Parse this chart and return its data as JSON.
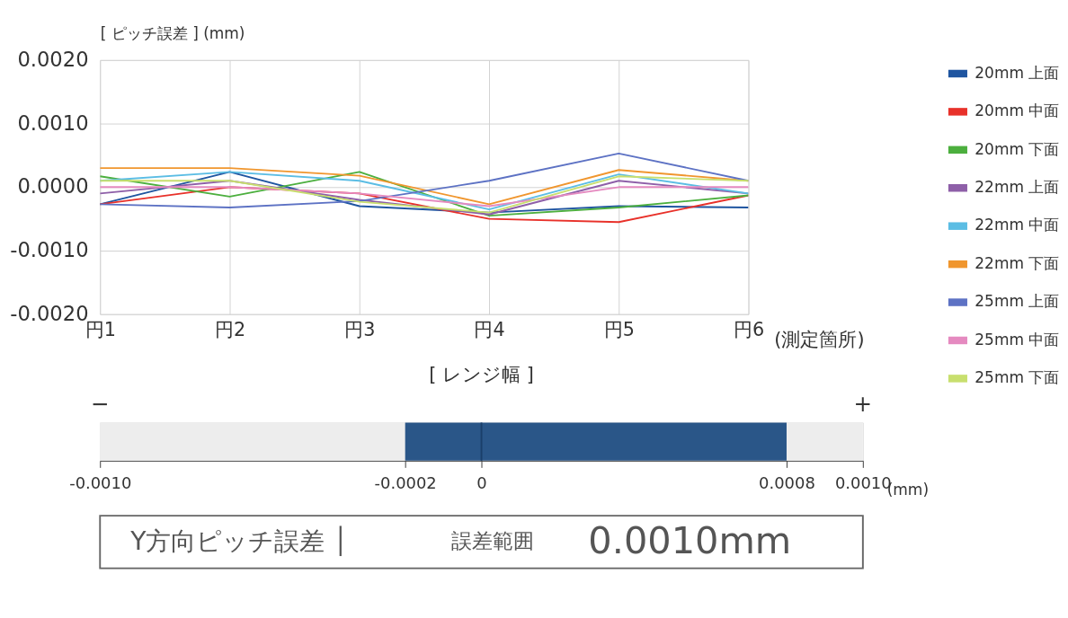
{
  "chart_data": [
    {
      "type": "line",
      "ylabel": "[ ピッチ誤差 ] (mm)",
      "xlabel": "(測定箇所)",
      "categories": [
        "円1",
        "円2",
        "円3",
        "円4",
        "円5",
        "円6"
      ],
      "series": [
        {
          "name": "20mm 上面",
          "color": "#1f55a0",
          "values": [
            -0.00027,
            0.00024,
            -0.0003,
            -0.0004,
            -0.0003,
            -0.00032
          ]
        },
        {
          "name": "20mm 中面",
          "color": "#e8312a",
          "values": [
            -0.00027,
            0.0,
            -0.0001,
            -0.0005,
            -0.00055,
            -0.00013
          ]
        },
        {
          "name": "20mm 下面",
          "color": "#4caf3e",
          "values": [
            0.00017,
            -0.00015,
            0.00024,
            -0.00045,
            -0.00032,
            -0.00013
          ]
        },
        {
          "name": "22mm 上面",
          "color": "#8e5fa8",
          "values": [
            -0.0001,
            0.0001,
            -0.0002,
            -0.00043,
            0.0001,
            -0.0001
          ]
        },
        {
          "name": "22mm 中面",
          "color": "#5bbde4",
          "values": [
            0.0001,
            0.00024,
            0.0001,
            -0.00035,
            0.0002,
            -0.0001
          ]
        },
        {
          "name": "22mm 下面",
          "color": "#f0962e",
          "values": [
            0.0003,
            0.0003,
            0.00018,
            -0.00027,
            0.00027,
            0.0001
          ]
        },
        {
          "name": "25mm 上面",
          "color": "#5d72c4",
          "values": [
            -0.00027,
            -0.00032,
            -0.00022,
            0.0001,
            0.00053,
            0.0001
          ]
        },
        {
          "name": "25mm 中面",
          "color": "#e58ac0",
          "values": [
            0.0,
            0.0,
            -0.0001,
            -0.0003,
            0.0,
            0.0
          ]
        },
        {
          "name": "25mm 下面",
          "color": "#c8df6e",
          "values": [
            0.0001,
            0.0001,
            -0.00023,
            -0.0004,
            0.00017,
            0.0001
          ]
        }
      ],
      "ylim": [
        -0.002,
        0.002
      ],
      "yticks": [
        {
          "value": -0.002,
          "label": "-0.0020"
        },
        {
          "value": -0.001,
          "label": "-0.0010"
        },
        {
          "value": 0,
          "label": "0.0000"
        },
        {
          "value": 0.001,
          "label": "0.0010"
        },
        {
          "value": 0.002,
          "label": "0.0020"
        }
      ],
      "grid": true,
      "legend": "right",
      "marker": "none",
      "line_style": "solid"
    },
    {
      "type": "bar",
      "orientation": "horizontal",
      "title": "[ レンジ幅 ]",
      "xlabel": "(mm)",
      "categories": [
        null
      ],
      "base": [
        -0.0002
      ],
      "values": [
        0.001
      ],
      "colors": [
        "#2a5688"
      ],
      "xlim": [
        -0.001,
        0.001
      ],
      "xticks": [
        {
          "value": -0.001,
          "label": "-0.0010"
        },
        {
          "value": -0.0002,
          "label": "-0.0002"
        },
        0,
        {
          "value": 0.0008,
          "label": "0.0008"
        },
        {
          "value": 0.001,
          "label": "0.0010"
        }
      ],
      "bands": [
        {
          "axis": "x",
          "from": -0.001,
          "to": 0.001,
          "color": "#ededed"
        }
      ],
      "ref_lines": [
        {
          "axis": "x",
          "value": 0,
          "color": "#1a3f6a"
        }
      ],
      "annotations": [
        "−",
        "+"
      ]
    },
    {
      "type": "other",
      "annotations": [
        "Y方向ピッチ誤差 │",
        "誤差範囲",
        "0.0010mm"
      ]
    }
  ]
}
